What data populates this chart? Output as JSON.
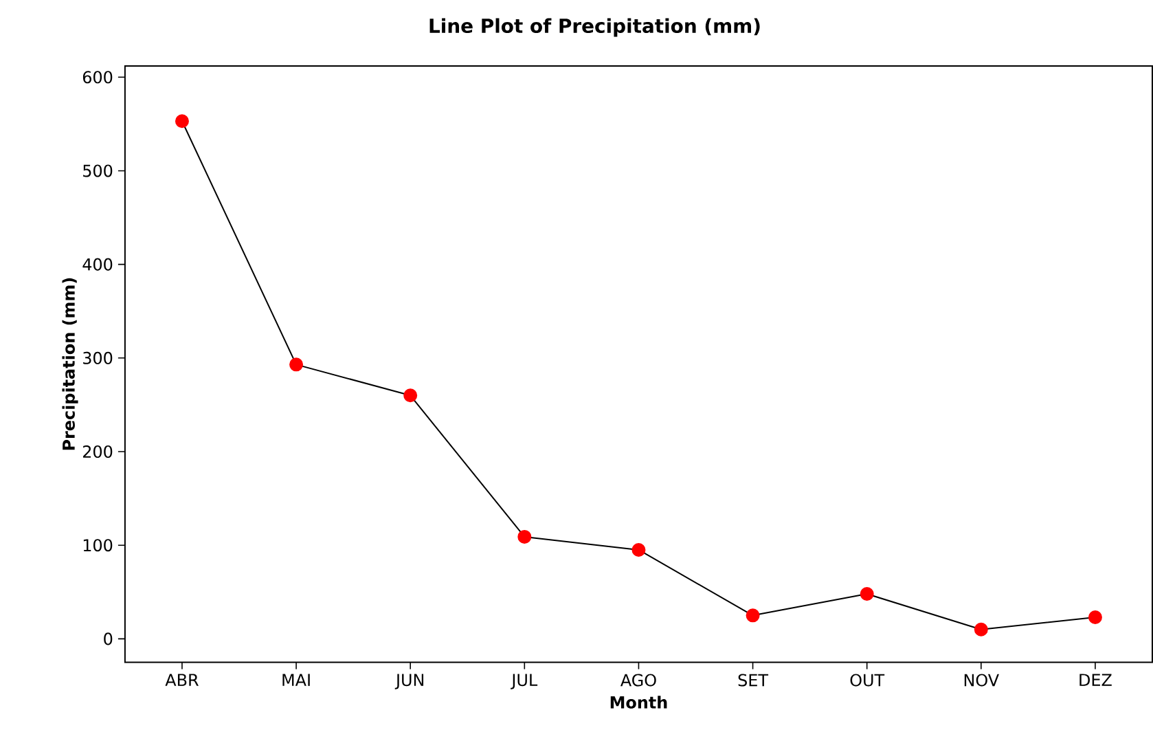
{
  "chart_data": {
    "type": "line",
    "title": "Line Plot of Precipitation (mm)",
    "xlabel": "Month",
    "ylabel": "Precipitation (mm)",
    "categories": [
      "ABR",
      "MAI",
      "JUN",
      "JUL",
      "AGO",
      "SET",
      "OUT",
      "NOV",
      "DEZ"
    ],
    "series": [
      {
        "color": "#ff0000",
        "values": [
          553,
          293,
          260,
          109,
          95,
          25,
          48,
          10,
          23
        ]
      }
    ],
    "ylim": [
      -25,
      612
    ],
    "yticks": [
      0,
      100,
      200,
      300,
      400,
      500,
      600
    ],
    "marker": "circle",
    "line_style": "solid",
    "grid": false
  }
}
